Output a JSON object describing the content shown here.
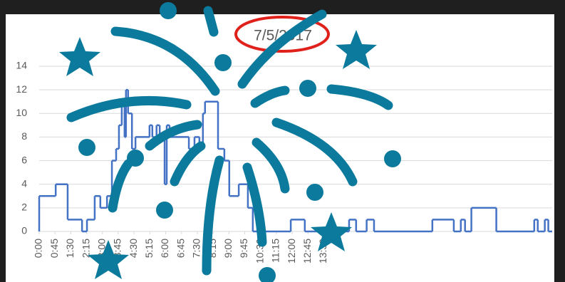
{
  "chart_data": {
    "type": "line",
    "step": "post",
    "title": "7/5/2017",
    "color": "#4472c4",
    "grid": true,
    "x": [
      0,
      47,
      81,
      122,
      136,
      158,
      174,
      193,
      207,
      219,
      227,
      235,
      243,
      247,
      253,
      264,
      274,
      314,
      322,
      334,
      343,
      357,
      363,
      371,
      426,
      442,
      456,
      466,
      472,
      509,
      527,
      541,
      568,
      594,
      608,
      716,
      756,
      882,
      902,
      932,
      953,
      1119,
      1180,
      1200,
      1212,
      1230,
      1301,
      1409,
      1419,
      1439,
      1449
    ],
    "values": [
      3,
      4,
      1,
      0,
      1,
      3,
      2,
      3,
      6,
      7,
      9,
      11,
      8,
      12,
      10,
      7,
      8,
      9,
      8,
      9,
      8,
      4,
      9,
      8,
      7,
      8,
      7,
      10,
      11,
      7,
      6,
      3,
      4,
      2,
      0,
      1,
      0,
      1,
      0,
      1,
      0,
      1,
      0,
      1,
      0,
      2,
      0,
      1,
      0,
      1,
      0
    ],
    "xlim": [
      0,
      1460
    ],
    "xticks": [
      {
        "value": 0,
        "label": "0:00"
      },
      {
        "value": 45,
        "label": "0:45"
      },
      {
        "value": 90,
        "label": "1:30"
      },
      {
        "value": 135,
        "label": "2:15"
      },
      {
        "value": 180,
        "label": "3:00"
      },
      {
        "value": 225,
        "label": "3:45"
      },
      {
        "value": 270,
        "label": "4:30"
      },
      {
        "value": 315,
        "label": "5:15"
      },
      {
        "value": 360,
        "label": "6:00"
      },
      {
        "value": 405,
        "label": "6:45"
      },
      {
        "value": 450,
        "label": "7:30"
      },
      {
        "value": 495,
        "label": "8:15"
      },
      {
        "value": 540,
        "label": "9:00"
      },
      {
        "value": 585,
        "label": "9:45"
      },
      {
        "value": 630,
        "label": "10:30"
      },
      {
        "value": 675,
        "label": "11:15"
      },
      {
        "value": 720,
        "label": "12:00"
      },
      {
        "value": 765,
        "label": "12:45"
      },
      {
        "value": 810,
        "label": "13:30"
      }
    ],
    "ylim": [
      0,
      14
    ],
    "yticks": [
      0,
      2,
      4,
      6,
      8,
      10,
      12,
      14
    ]
  }
}
